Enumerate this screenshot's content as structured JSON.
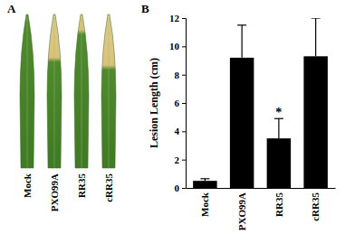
{
  "panel_a": {
    "letter": "A",
    "labels": [
      "Mock",
      "PXO99A",
      "RR35",
      "cRR35"
    ]
  },
  "panel_b": {
    "letter": "B"
  },
  "chart_data": {
    "type": "bar",
    "y_label": "Lesion Length (cm)",
    "categories": [
      "Mock",
      "PXO99A",
      "RR35",
      "cRR35"
    ],
    "values": [
      0.5,
      9.2,
      3.5,
      9.3
    ],
    "errors": [
      0.15,
      2.3,
      1.4,
      2.7
    ],
    "color": "#000000",
    "ylim": [
      0,
      12
    ],
    "yticks": [
      0,
      2,
      4,
      6,
      8,
      10,
      12
    ],
    "annotations": [
      {
        "text": "*",
        "category": "RR35"
      }
    ]
  }
}
